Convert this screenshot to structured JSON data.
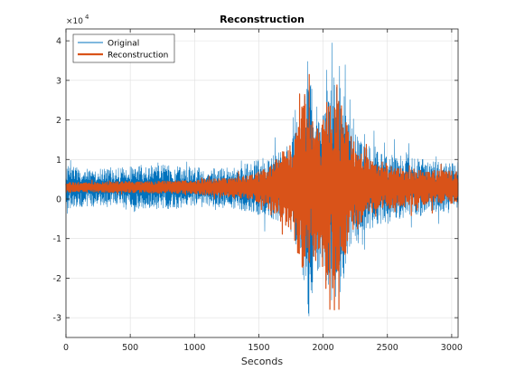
{
  "chart_data": {
    "type": "line",
    "title": "Reconstruction",
    "xlabel": "Seconds",
    "ylabel": "",
    "exponent_label": "×10",
    "exponent_power": "4",
    "xlim": [
      0,
      3050
    ],
    "ylim": [
      -3.5,
      4.3
    ],
    "y_scale_factor": 10000,
    "xticks": [
      0,
      500,
      1000,
      1500,
      2000,
      2500,
      3000
    ],
    "xtick_labels": [
      "0",
      "500",
      "1000",
      "1500",
      "2000",
      "2500",
      "3000"
    ],
    "yticks": [
      -3,
      -2,
      -1,
      0,
      1,
      2,
      3,
      4
    ],
    "ytick_labels": [
      "-3",
      "-2",
      "-1",
      "0",
      "1",
      "2",
      "3",
      "4"
    ],
    "grid": true,
    "legend_position": "top-left",
    "series": [
      {
        "name": "Original",
        "color": "#0072BD",
        "baseline": 0.3,
        "envelope": [
          [
            0,
            0.55
          ],
          [
            200,
            0.5
          ],
          [
            400,
            0.5
          ],
          [
            600,
            0.55
          ],
          [
            800,
            0.55
          ],
          [
            1000,
            0.5
          ],
          [
            1200,
            0.5
          ],
          [
            1400,
            0.6
          ],
          [
            1600,
            0.8
          ],
          [
            1750,
            1.1
          ],
          [
            1800,
            1.6
          ],
          [
            1850,
            2.4
          ],
          [
            1880,
            3.6
          ],
          [
            1900,
            3.0
          ],
          [
            1950,
            2.2
          ],
          [
            2000,
            2.0
          ],
          [
            2050,
            2.8
          ],
          [
            2100,
            3.2
          ],
          [
            2150,
            2.6
          ],
          [
            2200,
            1.6
          ],
          [
            2300,
            1.2
          ],
          [
            2400,
            1.0
          ],
          [
            2600,
            0.8
          ],
          [
            2800,
            0.7
          ],
          [
            3050,
            0.6
          ]
        ]
      },
      {
        "name": "Reconstruction",
        "color": "#D95319",
        "baseline": 0.3,
        "envelope": [
          [
            0,
            0.12
          ],
          [
            200,
            0.12
          ],
          [
            400,
            0.14
          ],
          [
            600,
            0.14
          ],
          [
            800,
            0.16
          ],
          [
            1000,
            0.18
          ],
          [
            1200,
            0.22
          ],
          [
            1400,
            0.3
          ],
          [
            1550,
            0.45
          ],
          [
            1650,
            0.8
          ],
          [
            1750,
            1.2
          ],
          [
            1850,
            2.3
          ],
          [
            1900,
            2.0
          ],
          [
            1950,
            1.6
          ],
          [
            2000,
            1.8
          ],
          [
            2050,
            2.4
          ],
          [
            2100,
            2.7
          ],
          [
            2150,
            2.1
          ],
          [
            2200,
            1.4
          ],
          [
            2300,
            0.9
          ],
          [
            2400,
            0.6
          ],
          [
            2600,
            0.5
          ],
          [
            2800,
            0.45
          ],
          [
            3050,
            0.4
          ]
        ]
      }
    ]
  }
}
